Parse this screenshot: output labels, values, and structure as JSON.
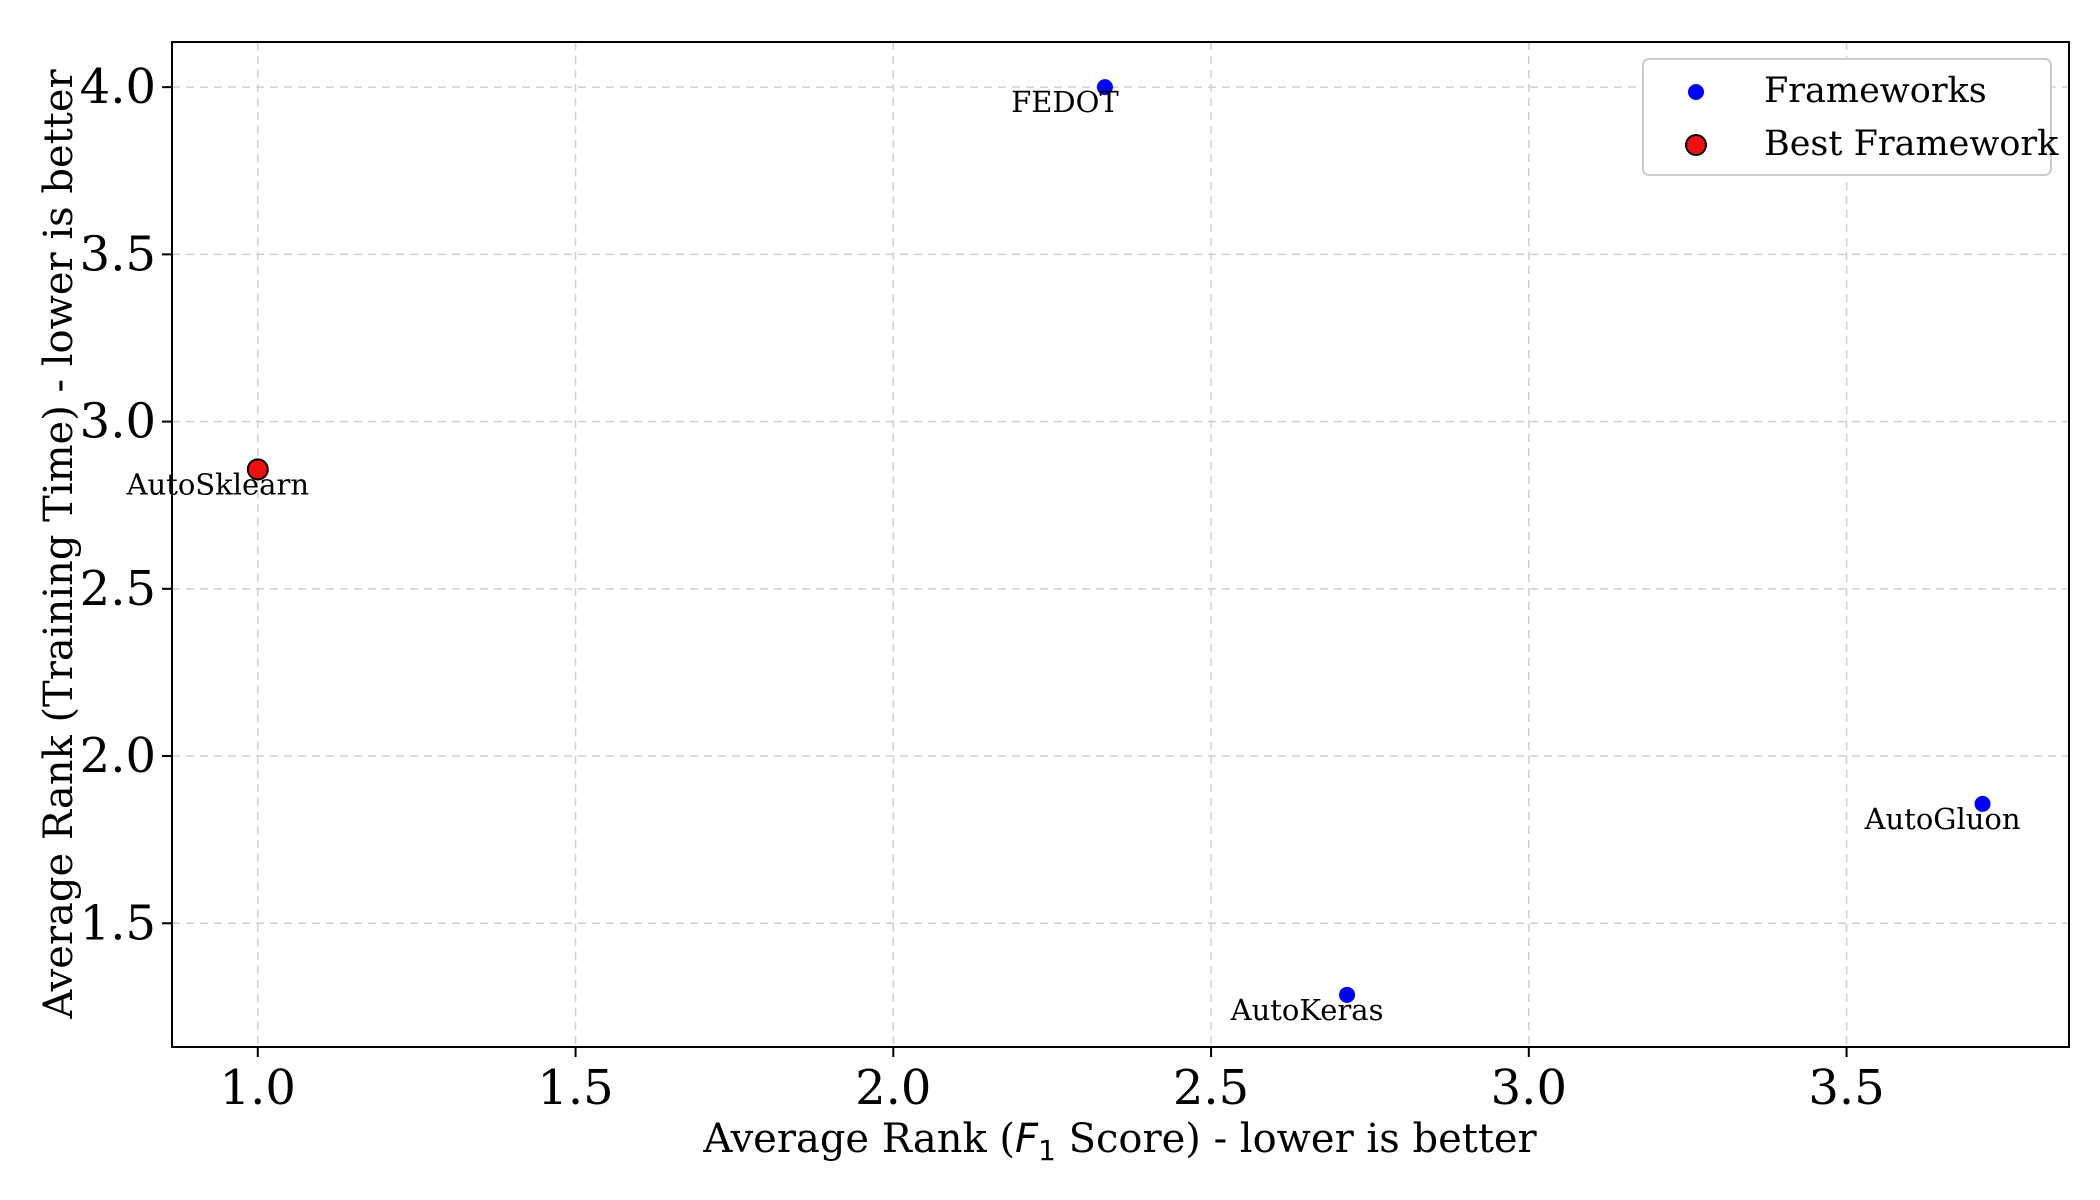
{
  "chart_data": {
    "type": "scatter",
    "xlabel_parts": {
      "before": "Average Rank (",
      "symbol": "F",
      "subscript": "1",
      "after": " Score) - lower is better"
    },
    "ylabel": "Average Rank (Training Time) - lower is better",
    "xlim": [
      0.865,
      3.85
    ],
    "ylim": [
      1.13,
      4.135
    ],
    "x_ticks": [
      1.0,
      1.5,
      2.0,
      2.5,
      3.0,
      3.5
    ],
    "x_tick_labels": [
      "1.0",
      "1.5",
      "2.0",
      "2.5",
      "3.0",
      "3.5"
    ],
    "y_ticks": [
      1.5,
      2.0,
      2.5,
      3.0,
      3.5,
      4.0
    ],
    "y_tick_labels": [
      "1.5",
      "2.0",
      "2.5",
      "3.0",
      "3.5",
      "4.0"
    ],
    "grid": true,
    "legend_position": "top-right",
    "series": [
      {
        "name": "Frameworks",
        "color": "#0000ff",
        "points": [
          {
            "label": "FEDOT",
            "x": 2.333,
            "y": 4.0
          },
          {
            "label": "AutoGluon",
            "x": 3.714,
            "y": 1.857
          },
          {
            "label": "AutoKeras",
            "x": 2.714,
            "y": 1.286
          }
        ]
      },
      {
        "name": "Best Framework",
        "color": "#ee1111",
        "edge_color": "#000000",
        "points": [
          {
            "label": "AutoSklearn",
            "x": 1.0,
            "y": 2.857
          }
        ]
      }
    ]
  }
}
